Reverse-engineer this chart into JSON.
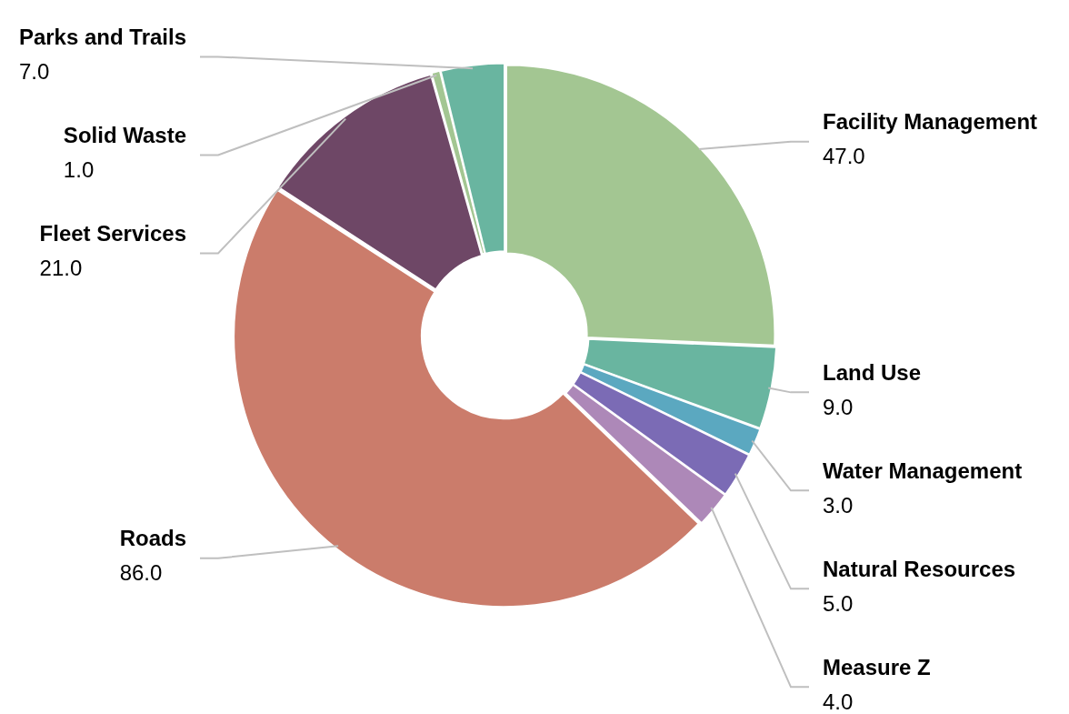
{
  "chart_data": {
    "type": "donut",
    "categories": [
      "Facility Management",
      "Land Use",
      "Water Management",
      "Natural Resources",
      "Measure Z",
      "Roads",
      "Fleet Services",
      "Solid Waste",
      "Parks and Trails"
    ],
    "values": [
      47,
      9,
      3,
      5,
      4,
      86,
      21,
      1,
      7
    ],
    "value_labels": [
      "47.0",
      "9.0",
      "3.0",
      "5.0",
      "4.0",
      "86.0",
      "21.0",
      "1.0",
      "7.0"
    ],
    "colors": [
      "#a3c692",
      "#69b5a0",
      "#5ba8c0",
      "#7b6bb5",
      "#ad88b8",
      "#cb7c6b",
      "#6e4766",
      "#a3c692",
      "#69b5a0"
    ],
    "legend": false
  }
}
